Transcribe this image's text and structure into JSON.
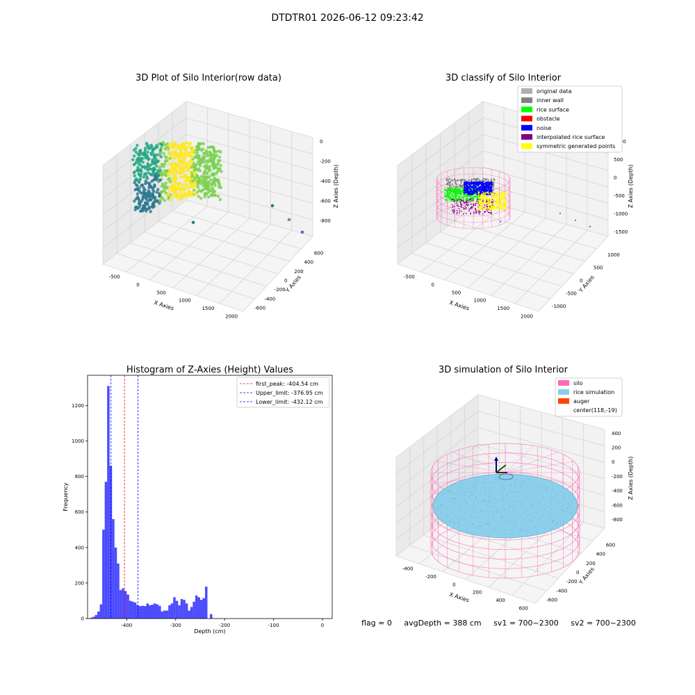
{
  "suptitle": "DTDTR01 2026-06-12 09:23:42",
  "footer": {
    "flag": "flag = 0",
    "avg_depth": "avgDepth = 388 cm",
    "sv1": "sv1 = 700~2300",
    "sv2": "sv2 = 700~2300"
  },
  "colors": {
    "raw_gradient": [
      "#2a788e",
      "#22a884",
      "#7ad151",
      "#fde725"
    ],
    "original_data": "#b0b0b0",
    "inner_wall": "#808080",
    "rice_surface": "#00ff00",
    "obstacle": "#ff0000",
    "noise": "#0000ff",
    "interpolated_rice_surface": "#800080",
    "symmetric_generated_points": "#ffff00",
    "silo": "#ff69b4",
    "rice_simulation": "#87ceeb",
    "auger": "#ff4500",
    "histogram_bars": "#0000ff",
    "first_peak_line": "#ff0000",
    "limit_lines": "#0000ff"
  },
  "chart_data": [
    {
      "type": "scatter",
      "title": "3D Plot of Silo Interior(row data)",
      "xlabel": "X Axies",
      "ylabel": "Y Axies",
      "zlabel": "Z Axies (Depth)",
      "x_ticks": [
        "-500",
        "0",
        "500",
        "1000",
        "1500",
        "2000"
      ],
      "y_ticks": [
        "-600",
        "-400",
        "-200",
        "0",
        "200",
        "400",
        "600"
      ],
      "z_ticks": [
        "-800",
        "-600",
        "-400",
        "-200",
        "0"
      ],
      "outlier_points": [
        {
          "x": 1100,
          "y": 400,
          "z": -700
        },
        {
          "x": 1900,
          "y": 600,
          "z": -620
        },
        {
          "x": 2000,
          "y": 650,
          "z": -870
        },
        {
          "x": 300,
          "y": -200,
          "z": -900
        }
      ]
    },
    {
      "type": "scatter",
      "title": "3D classify of Silo Interior",
      "xlabel": "X Axies",
      "ylabel": "Y Axies",
      "zlabel": "Z Axies (Depth)",
      "x_ticks": [
        "-500",
        "0",
        "500",
        "1000",
        "1500",
        "2000"
      ],
      "y_ticks": [
        "-1000",
        "-500",
        "0",
        "500",
        "1000"
      ],
      "z_ticks": [
        "-1500",
        "-1000",
        "-500",
        "0",
        "500",
        "1000"
      ],
      "legend_position": "top-right",
      "legend": [
        {
          "label": "original data",
          "color_key": "original_data"
        },
        {
          "label": "inner wall",
          "color_key": "inner_wall"
        },
        {
          "label": "rice surface",
          "color_key": "rice_surface"
        },
        {
          "label": "obstacle",
          "color_key": "obstacle"
        },
        {
          "label": "noise",
          "color_key": "noise"
        },
        {
          "label": "interpolated rice surface",
          "color_key": "interpolated_rice_surface"
        },
        {
          "label": "symmetric generated points",
          "color_key": "symmetric_generated_points"
        }
      ]
    },
    {
      "type": "bar",
      "title": "Histogram of Z-Axies (Height) Values",
      "xlabel": "Depth (cm)",
      "ylabel": "Frequency",
      "xlim": [
        -480,
        20
      ],
      "ylim": [
        0,
        1370
      ],
      "x_ticks": [
        -400,
        -300,
        -200,
        -100,
        0
      ],
      "y_ticks": [
        0,
        200,
        400,
        600,
        800,
        1000,
        1200
      ],
      "bin_start": -475,
      "bin_width": 5,
      "values": [
        5,
        10,
        20,
        40,
        80,
        500,
        770,
        1310,
        860,
        560,
        400,
        310,
        160,
        170,
        155,
        135,
        100,
        95,
        90,
        75,
        70,
        72,
        70,
        85,
        75,
        78,
        85,
        80,
        72,
        40,
        45,
        45,
        75,
        85,
        120,
        100,
        75,
        110,
        105,
        85,
        45,
        65,
        95,
        130,
        120,
        105,
        115,
        180,
        0,
        25
      ],
      "lines": [
        {
          "label": "first_peak: -404.54 cm",
          "x": -404.54,
          "color_key": "first_peak_line"
        },
        {
          "label": "Upper_limit: -376.95 cm",
          "x": -376.95,
          "color_key": "limit_lines"
        },
        {
          "label": "Lower_limit: -432.12 cm",
          "x": -432.12,
          "color_key": "limit_lines"
        }
      ],
      "legend_position": "top-right"
    },
    {
      "type": "scatter",
      "title": "3D simulation of Silo Interior",
      "xlabel": "X Axies",
      "ylabel": "Y Axies",
      "zlabel": "Z Axies (Depth)",
      "x_ticks": [
        "-400",
        "-200",
        "0",
        "200",
        "400",
        "600"
      ],
      "y_ticks": [
        "-600",
        "-400",
        "-200",
        "0",
        "200",
        "400",
        "600"
      ],
      "z_ticks": [
        "-800",
        "-600",
        "-400",
        "-200",
        "0",
        "200",
        "400"
      ],
      "legend_position": "top-right",
      "legend": [
        {
          "label": "silo",
          "color_key": "silo"
        },
        {
          "label": "rice simulation",
          "color_key": "rice_simulation"
        },
        {
          "label": "auger",
          "color_key": "auger"
        },
        {
          "label": "center(118,-19)",
          "color_key": ""
        }
      ]
    }
  ]
}
